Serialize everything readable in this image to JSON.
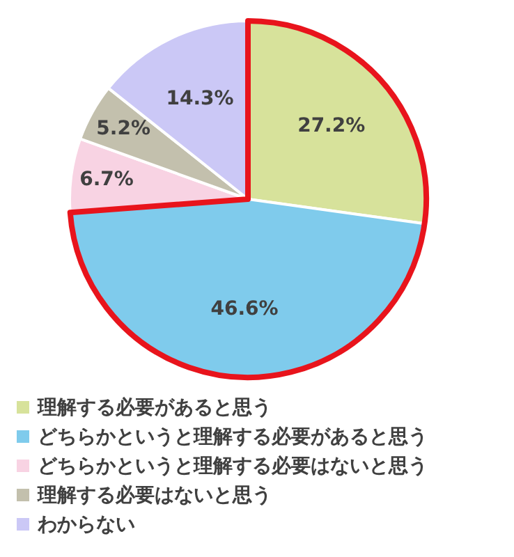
{
  "chart_data": {
    "type": "pie",
    "categories": [
      "理解する必要があると思う",
      "どちらかというと理解する必要があると思う",
      "どちらかというと理解する必要はないと思う",
      "理解する必要はないと思う",
      "わからない"
    ],
    "values": [
      27.2,
      46.6,
      6.7,
      5.2,
      14.3
    ],
    "colors": [
      "#d7e29b",
      "#7fcbec",
      "#f8d3e3",
      "#c3c0ad",
      "#cbc8f6"
    ],
    "value_labels": [
      "27.2%",
      "46.6%",
      "6.7%",
      "5.2%",
      "14.3%"
    ],
    "legend": "bottom"
  }
}
